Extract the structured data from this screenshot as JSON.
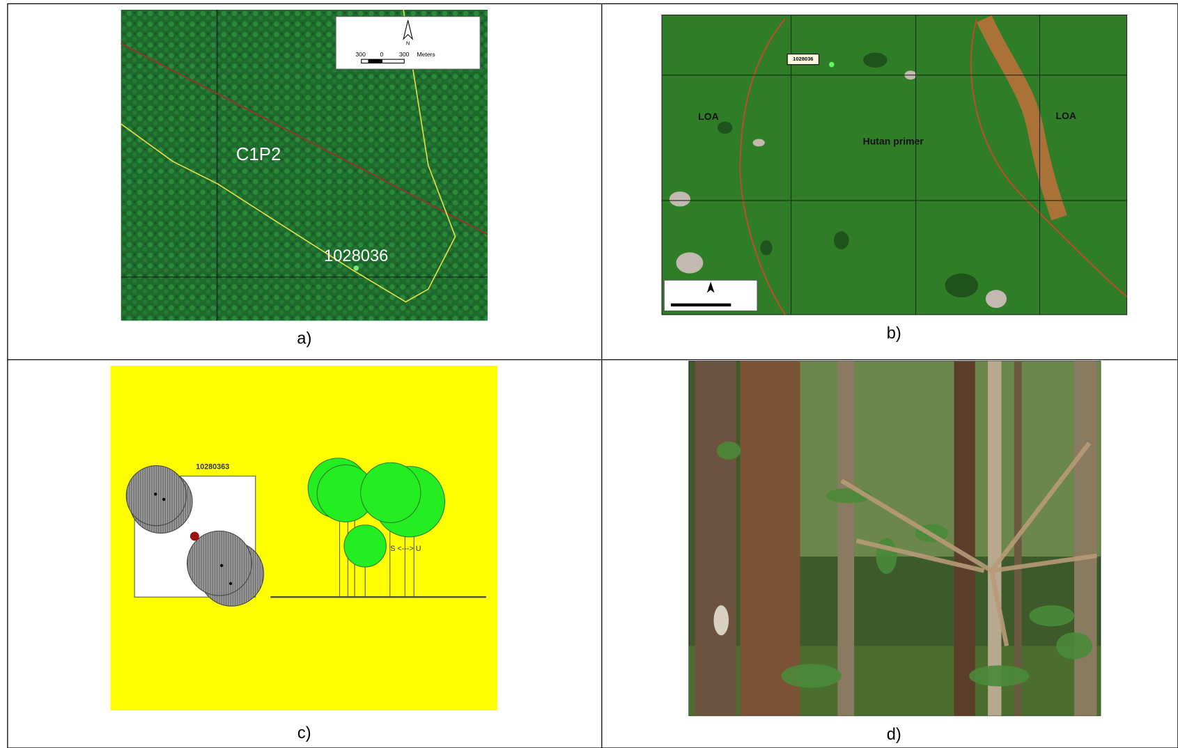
{
  "panel_a": {
    "caption": "a)",
    "north": "N",
    "scale_labels": [
      "300",
      "0",
      "300",
      "Meters"
    ],
    "area_label": "C1P2",
    "point_label": "1028036"
  },
  "panel_b": {
    "caption": "b)",
    "point_label": "1028036",
    "left_label": "LOA",
    "right_label": "LOA",
    "center_label": "Hutan primer"
  },
  "panel_c": {
    "caption": "c)",
    "plot_label": "10280363",
    "axis_label": "S <---> U"
  },
  "panel_d": {
    "caption": "d)"
  }
}
